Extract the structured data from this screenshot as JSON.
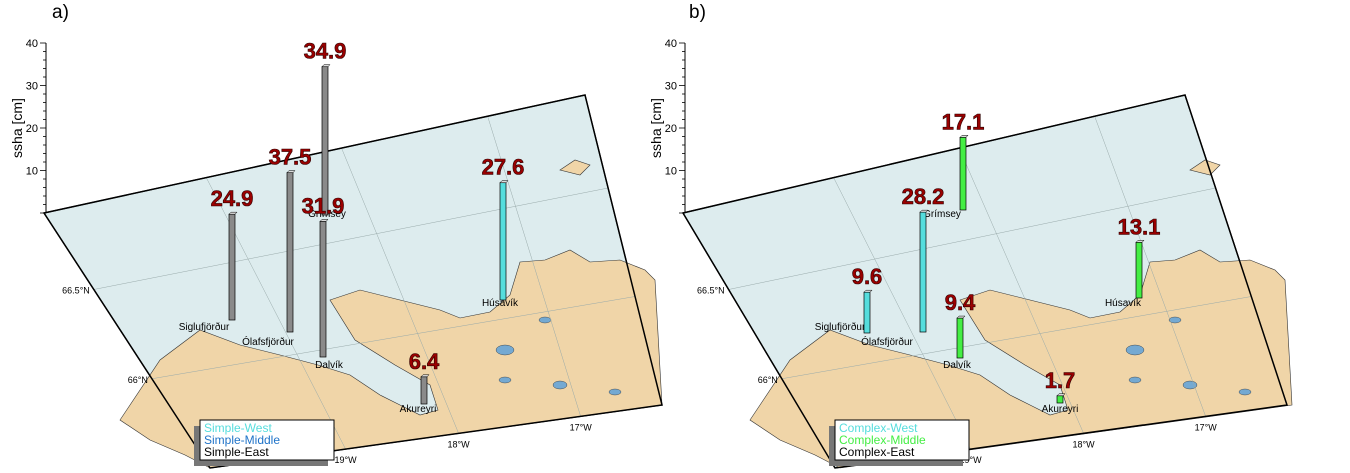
{
  "colors": {
    "sea": "#ddecee",
    "land": "#f0d5a8",
    "lake": "#74a9d2",
    "label_red": "#9a0000",
    "label_stroke": "#2b0000",
    "west": "#55dddd",
    "middle_simple": "#1f73c8",
    "middle_complex": "#44ee44",
    "east": "#8a8a8a",
    "east_text": "#000000"
  },
  "axis": {
    "ylabel": "ssha [cm]",
    "yticks": [
      "10",
      "20",
      "30",
      "40"
    ],
    "lat_labels": [
      "66.5°N",
      "66°N"
    ],
    "lon_labels": [
      "19°W",
      "18°W",
      "17°W"
    ]
  },
  "places": [
    "Siglufjörður",
    "Ólafsfjörður",
    "Grímsey",
    "Dalvík",
    "Akureyri",
    "Húsavík"
  ],
  "chart_data": [
    {
      "type": "bar",
      "panel": "a)",
      "ylabel": "ssha [cm]",
      "ylim": [
        0,
        40
      ],
      "categories": [
        "Siglufjörður",
        "Ólafsfjörður",
        "Grímsey",
        "Dalvík",
        "Akureyri",
        "Húsavík"
      ],
      "series": [
        {
          "name": "Simple-West",
          "values": [
            null,
            null,
            null,
            null,
            null,
            27.6
          ]
        },
        {
          "name": "Simple-Middle",
          "values": [
            null,
            null,
            null,
            null,
            null,
            null
          ]
        },
        {
          "name": "Simple-East",
          "values": [
            24.9,
            37.5,
            34.9,
            31.9,
            6.4,
            null
          ]
        }
      ],
      "labels": [
        "24.9",
        "37.5",
        "34.9",
        "31.9",
        "6.4",
        "27.6"
      ],
      "legend": "bottom-left"
    },
    {
      "type": "bar",
      "panel": "b)",
      "ylabel": "ssha [cm]",
      "ylim": [
        0,
        40
      ],
      "categories": [
        "Siglufjörður",
        "Ólafsfjörður",
        "Grímsey",
        "Dalvík",
        "Akureyri",
        "Húsavík"
      ],
      "series": [
        {
          "name": "Complex-West",
          "values": [
            9.6,
            28.2,
            null,
            null,
            null,
            null
          ]
        },
        {
          "name": "Complex-Middle",
          "values": [
            null,
            null,
            17.1,
            9.4,
            1.7,
            13.1
          ]
        },
        {
          "name": "Complex-East",
          "values": [
            null,
            null,
            null,
            null,
            null,
            null
          ]
        }
      ],
      "labels": [
        "9.6",
        "28.2",
        "17.1",
        "9.4",
        "1.7",
        "13.1"
      ],
      "legend": "bottom-left"
    }
  ]
}
